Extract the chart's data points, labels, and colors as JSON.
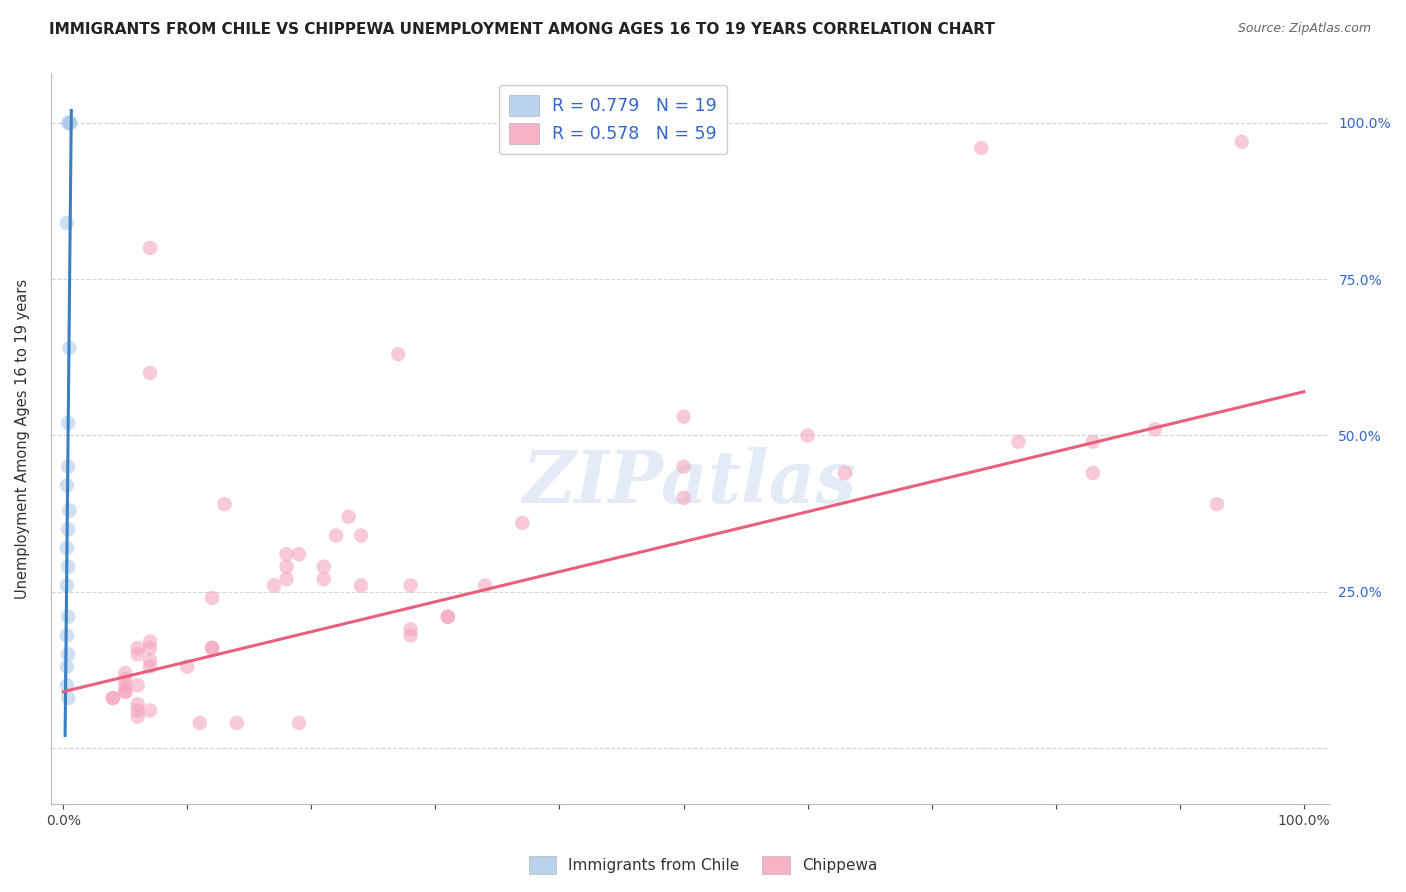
{
  "title": "IMMIGRANTS FROM CHILE VS CHIPPEWA UNEMPLOYMENT AMONG AGES 16 TO 19 YEARS CORRELATION CHART",
  "source": "Source: ZipAtlas.com",
  "ylabel": "Unemployment Among Ages 16 to 19 years",
  "xlim": [
    -0.01,
    1.02
  ],
  "ylim": [
    -0.09,
    1.08
  ],
  "legend_r1": "R = 0.779",
  "legend_n1": "N = 19",
  "legend_r2": "R = 0.578",
  "legend_n2": "N = 59",
  "blue_color": "#a8c8e8",
  "pink_color": "#f4a0b8",
  "blue_line_color": "#3a7fc1",
  "pink_line_color": "#e8607a",
  "legend_text_color": "#3366cc",
  "title_color": "#222222",
  "source_color": "#666666",
  "background_color": "#ffffff",
  "grid_color": "#cccccc",
  "scatter_blue_x": [
    0.004,
    0.005,
    0.006,
    0.003,
    0.005,
    0.004,
    0.004,
    0.003,
    0.005,
    0.004,
    0.003,
    0.004,
    0.003,
    0.004,
    0.003,
    0.004,
    0.003,
    0.003,
    0.004
  ],
  "scatter_blue_y": [
    1.0,
    1.0,
    1.0,
    0.84,
    0.64,
    0.52,
    0.45,
    0.42,
    0.38,
    0.35,
    0.32,
    0.29,
    0.26,
    0.21,
    0.18,
    0.15,
    0.13,
    0.1,
    0.08
  ],
  "scatter_pink_x": [
    0.74,
    0.95,
    0.07,
    0.27,
    0.07,
    0.5,
    0.5,
    0.6,
    0.88,
    0.83,
    0.83,
    0.77,
    0.5,
    0.13,
    0.23,
    0.22,
    0.24,
    0.18,
    0.19,
    0.18,
    0.21,
    0.21,
    0.18,
    0.17,
    0.28,
    0.34,
    0.12,
    0.31,
    0.31,
    0.28,
    0.28,
    0.07,
    0.07,
    0.12,
    0.12,
    0.06,
    0.06,
    0.07,
    0.07,
    0.1,
    0.05,
    0.05,
    0.06,
    0.05,
    0.05,
    0.05,
    0.04,
    0.04,
    0.06,
    0.06,
    0.07,
    0.06,
    0.11,
    0.14,
    0.19,
    0.24,
    0.37,
    0.63,
    0.93
  ],
  "scatter_pink_y": [
    0.96,
    0.97,
    0.8,
    0.63,
    0.6,
    0.53,
    0.45,
    0.5,
    0.51,
    0.49,
    0.44,
    0.49,
    0.4,
    0.39,
    0.37,
    0.34,
    0.34,
    0.31,
    0.31,
    0.29,
    0.29,
    0.27,
    0.27,
    0.26,
    0.26,
    0.26,
    0.24,
    0.21,
    0.21,
    0.19,
    0.18,
    0.17,
    0.16,
    0.16,
    0.16,
    0.16,
    0.15,
    0.14,
    0.13,
    0.13,
    0.12,
    0.11,
    0.1,
    0.1,
    0.09,
    0.09,
    0.08,
    0.08,
    0.07,
    0.06,
    0.06,
    0.05,
    0.04,
    0.04,
    0.04,
    0.26,
    0.36,
    0.44,
    0.39
  ],
  "blue_line_x": [
    0.0015,
    0.0065
  ],
  "blue_line_y": [
    0.02,
    1.02
  ],
  "pink_line_x": [
    0.0,
    1.0
  ],
  "pink_line_y": [
    0.09,
    0.57
  ],
  "marker_size": 110,
  "marker_alpha": 0.55,
  "line_width": 2.2,
  "watermark_text": "ZIPatlas",
  "watermark_color": "#c8d8ee",
  "watermark_alpha": 0.5,
  "x_ticks": [
    0.0,
    0.1,
    0.2,
    0.3,
    0.4,
    0.5,
    0.6,
    0.7,
    0.8,
    0.9,
    1.0
  ],
  "y_ticks": [
    0.0,
    0.25,
    0.5,
    0.75,
    1.0
  ],
  "y_ticklabels_right": [
    "",
    "25.0%",
    "50.0%",
    "75.0%",
    "100.0%"
  ]
}
